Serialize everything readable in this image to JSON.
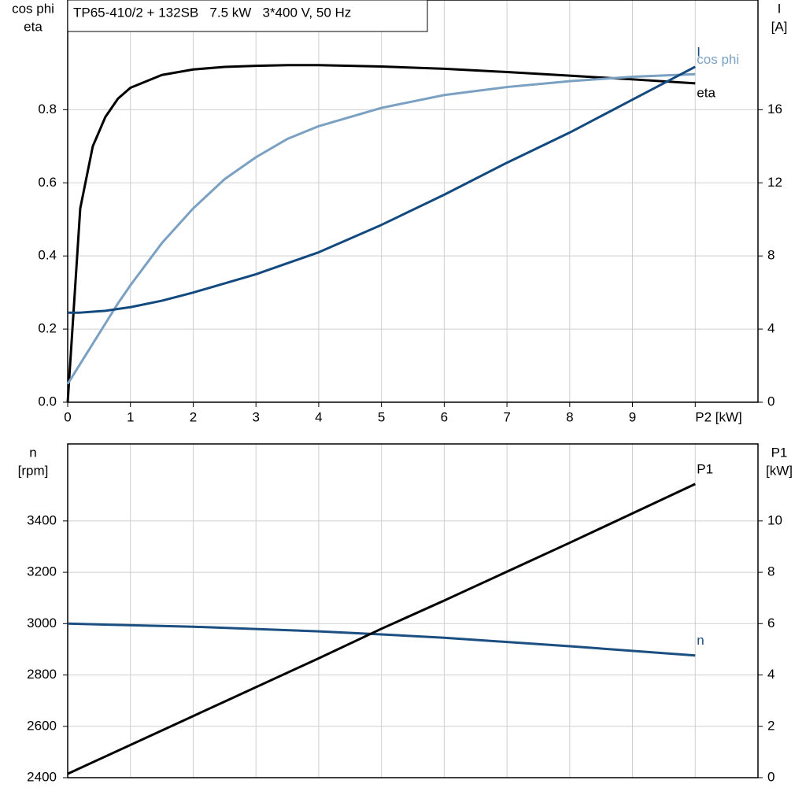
{
  "chart_data": [
    {
      "type": "line",
      "title": "TP65-410/2 + 132SB   7.5 kW   3*400 V, 50 Hz",
      "ylabel": [
        "cos phi",
        "eta"
      ],
      "y2label": [
        "I",
        "[A]"
      ],
      "x": [
        0,
        0.2,
        0.4,
        0.6,
        0.8,
        1,
        1.5,
        2,
        2.5,
        3,
        3.5,
        4,
        5,
        6,
        7,
        8,
        9,
        10
      ],
      "xlim": [
        0,
        11
      ],
      "xticks": [
        0,
        1,
        2,
        3,
        4,
        5,
        6,
        7,
        8,
        9,
        {
          "value": 10,
          "label": "P2 [kW]"
        }
      ],
      "ylim": [
        0,
        1.1
      ],
      "yticks": [
        {
          "value": 0,
          "label": "0.0"
        },
        0.2,
        0.4,
        0.6,
        0.8
      ],
      "y2lim": [
        0,
        22
      ],
      "y2ticks": [
        0,
        4,
        8,
        12,
        16
      ],
      "grid": true,
      "series": [
        {
          "name": "eta",
          "color": "#000000",
          "values": [
            0,
            0.53,
            0.7,
            0.78,
            0.83,
            0.86,
            0.895,
            0.91,
            0.917,
            0.92,
            0.922,
            0.922,
            0.918,
            0.912,
            0.903,
            0.893,
            0.883,
            0.872
          ]
        },
        {
          "name": "cos phi",
          "color": "#7aa0c2",
          "values": [
            0.05,
            0.105,
            0.16,
            0.215,
            0.27,
            0.32,
            0.435,
            0.53,
            0.61,
            0.67,
            0.72,
            0.755,
            0.805,
            0.84,
            0.862,
            0.878,
            0.89,
            0.897
          ]
        },
        {
          "name": "I",
          "color": "#124a80",
          "axis": "y2",
          "values": [
            4.9,
            4.9,
            4.95,
            5.0,
            5.1,
            5.2,
            5.55,
            6.0,
            6.5,
            7.0,
            7.6,
            8.2,
            9.7,
            11.35,
            13.1,
            14.75,
            16.55,
            18.35
          ]
        }
      ]
    },
    {
      "type": "line",
      "ylabel": [
        "n",
        "[rpm]"
      ],
      "y2label": [
        "P1",
        "[kW]"
      ],
      "x": [
        0,
        2,
        4,
        5,
        6,
        8,
        10
      ],
      "xlim": [
        0,
        11
      ],
      "ylim": [
        2400,
        3700
      ],
      "yticks": [
        2400,
        2600,
        2800,
        3000,
        3200,
        3400
      ],
      "y2lim": [
        0,
        13
      ],
      "y2ticks": [
        0,
        2,
        4,
        6,
        8,
        10
      ],
      "grid": true,
      "series": [
        {
          "name": "n",
          "color": "#1b4f82",
          "values": [
            3000,
            2988,
            2970,
            2958,
            2945,
            2912,
            2876
          ]
        },
        {
          "name": "P1",
          "color": "#000000",
          "axis": "y2",
          "values": [
            0.15,
            2.4,
            4.65,
            5.8,
            6.9,
            9.15,
            11.44
          ]
        }
      ]
    }
  ]
}
